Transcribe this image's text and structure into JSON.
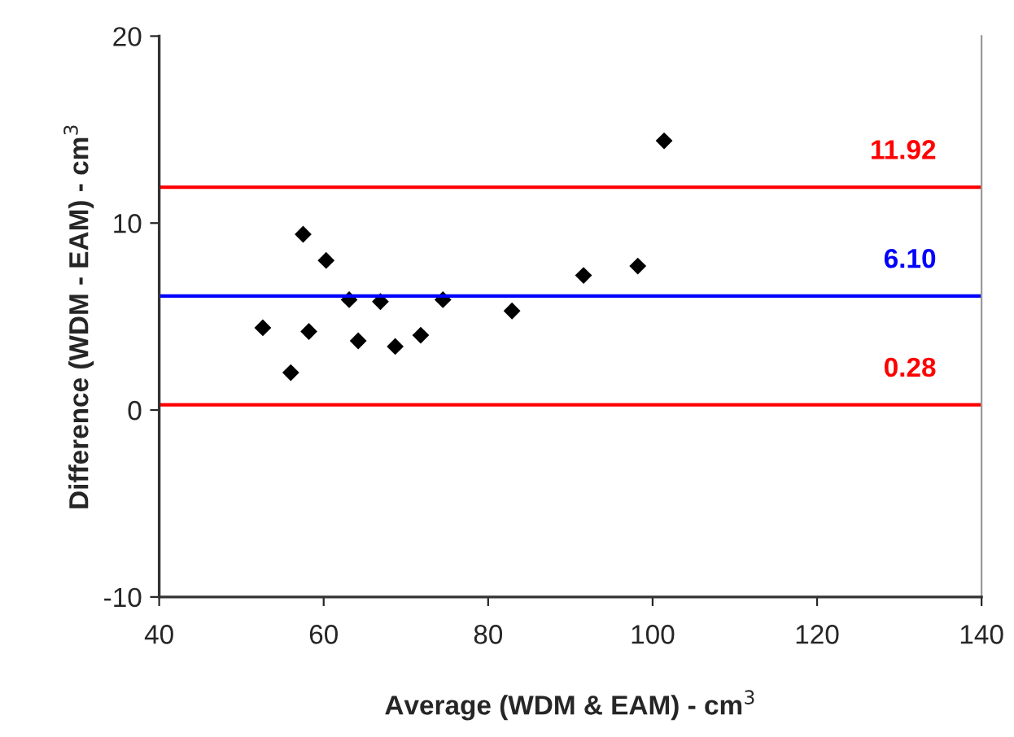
{
  "chart_data": {
    "type": "scatter",
    "xlabel": "Average (WDM & EAM) - cm$^{3}$",
    "ylabel": "Difference (WDM - EAM) - cm$^{3}$",
    "x": [
      52.6,
      56.0,
      57.5,
      58.2,
      60.3,
      63.1,
      64.2,
      66.9,
      68.7,
      71.8,
      74.5,
      82.9,
      91.6,
      98.2,
      101.4
    ],
    "series": [
      {
        "color": "#000000",
        "values": [
          4.4,
          2.0,
          9.4,
          4.2,
          8.0,
          5.9,
          3.7,
          5.8,
          3.4,
          4.0,
          5.9,
          5.3,
          7.2,
          7.7,
          14.4
        ]
      }
    ],
    "marker": "diamond",
    "grid": false,
    "legend": false,
    "xlim": [
      40,
      140
    ],
    "xticks": [
      40,
      60,
      80,
      100,
      120,
      140
    ],
    "ylim": [
      -10,
      20
    ],
    "yticks": [
      -10,
      0,
      10,
      20
    ],
    "ref_lines": [
      {
        "axis": "y",
        "value": 11.92,
        "label": "11.92",
        "color": "#ff0000"
      },
      {
        "axis": "y",
        "value": 6.1,
        "label": "6.10",
        "color": "#0000ff"
      },
      {
        "axis": "y",
        "value": 0.28,
        "label": "0.28",
        "color": "#ff0000"
      }
    ]
  }
}
